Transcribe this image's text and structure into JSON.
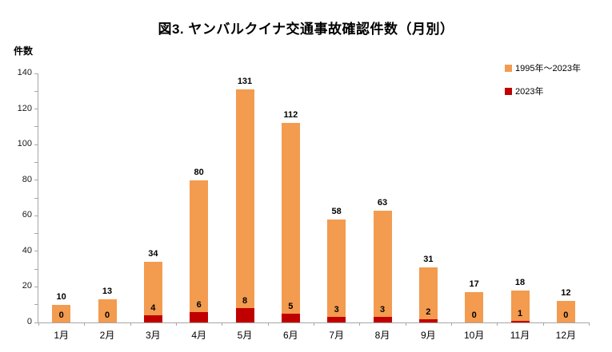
{
  "chart_data": {
    "type": "bar",
    "title": "図3. ヤンバルクイナ交通事故確認件数（月別）",
    "ylabel": "件数",
    "categories": [
      "1月",
      "2月",
      "3月",
      "4月",
      "5月",
      "6月",
      "7月",
      "8月",
      "9月",
      "10月",
      "11月",
      "12月"
    ],
    "series": [
      {
        "name": "1995年～2023年",
        "color": "#F39B4F",
        "values": [
          10,
          13,
          34,
          80,
          131,
          112,
          58,
          63,
          31,
          17,
          18,
          12
        ]
      },
      {
        "name": "2023年",
        "color": "#C00000",
        "values": [
          0,
          0,
          4,
          6,
          8,
          5,
          3,
          3,
          2,
          0,
          1,
          0
        ]
      }
    ],
    "ylim": [
      0,
      140
    ],
    "y_tick_step": 20,
    "y_minor_step": 10,
    "grid": "off",
    "legend_position": "top-right",
    "bar_style": "2023 values drawn in dark red at the base of the orange total bars; totals labeled above bars, 2023 values labeled inside bars",
    "axis_color": "#A6A6A6",
    "label_color": "#000000",
    "background": "#FFFFFF"
  }
}
